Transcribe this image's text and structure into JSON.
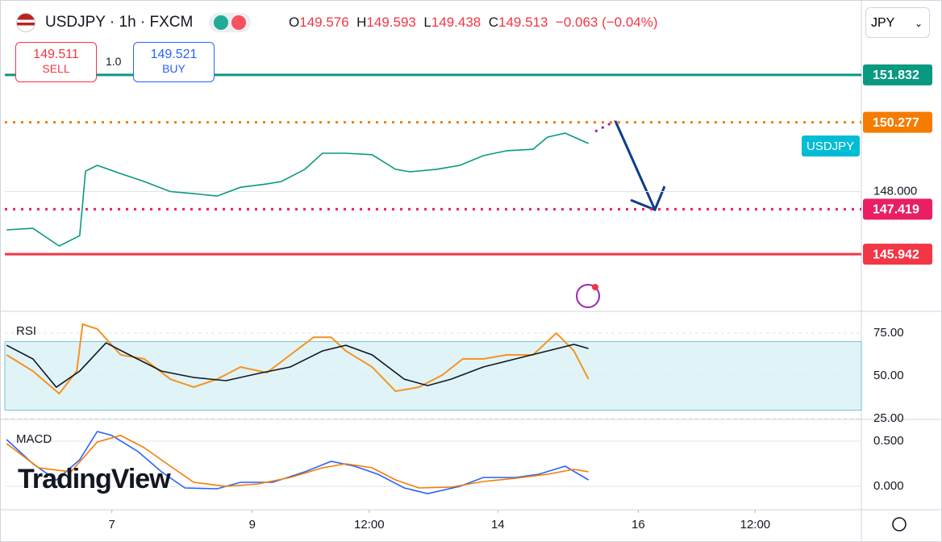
{
  "header": {
    "symbol": "USDJPY · 1h · FXCM",
    "ohlc": [
      {
        "key": "O",
        "value": "149.576"
      },
      {
        "key": "H",
        "value": "149.593"
      },
      {
        "key": "L",
        "value": "149.438"
      },
      {
        "key": "C",
        "value": "149.513"
      }
    ],
    "change": "−0.063 (−0.04%)"
  },
  "trade": {
    "sell_price": "149.511",
    "sell_label": "SELL",
    "spread": "1.0",
    "buy_price": "149.521",
    "buy_label": "BUY"
  },
  "currency": "JPY",
  "watermark": "TradingView",
  "chart_data": [
    {
      "type": "line",
      "title": "USDJPY",
      "xlim": [
        -36.6,
        256.3
      ],
      "ylim": [
        144.09,
        154.03
      ],
      "yticks": [
        {
          "value": 148,
          "label": "148.000"
        }
      ],
      "levels": [
        {
          "value": 151.832,
          "color": "#089981",
          "style": "solid"
        },
        {
          "value": 150.277,
          "color": "#f57c00",
          "style": "dotted"
        },
        {
          "value": 147.419,
          "color": "#e91e63",
          "style": "dotted"
        },
        {
          "value": 145.942,
          "color": "#f23645",
          "style": "solid"
        }
      ],
      "series": [
        {
          "color": "#089981",
          "x": [
            -36,
            -27,
            -18,
            -11,
            -9,
            -5,
            3,
            11,
            20,
            28,
            36,
            44,
            53,
            58,
            66,
            72,
            80,
            89,
            97,
            102,
            111,
            119,
            127,
            135,
            144,
            149,
            155,
            163
          ],
          "values": [
            146.74,
            146.79,
            146.21,
            146.55,
            148.67,
            148.86,
            148.59,
            148.33,
            148.0,
            147.93,
            147.85,
            148.14,
            148.25,
            148.33,
            148.73,
            149.26,
            149.26,
            149.21,
            148.73,
            148.65,
            148.73,
            148.86,
            149.18,
            149.34,
            149.39,
            149.79,
            149.92,
            149.58
          ]
        }
      ]
    },
    {
      "type": "line",
      "title": "RSI",
      "xlim": [
        -36.6,
        256.3
      ],
      "ylim": [
        25.5,
        86.8
      ],
      "band": [
        30,
        70
      ],
      "yticks": [
        {
          "value": 75,
          "label": "75.00"
        },
        {
          "value": 50,
          "label": "50.00"
        },
        {
          "value": 25,
          "label": "25.00"
        }
      ],
      "series": [
        {
          "color": "#f7931e",
          "x": [
            -36,
            -27,
            -18,
            -12,
            -10,
            -5,
            3,
            11,
            20,
            28,
            36,
            44,
            53,
            61,
            69,
            75,
            80,
            89,
            97,
            105,
            113,
            120,
            127,
            135,
            144,
            152,
            158,
            163
          ],
          "values": [
            62.3,
            52.8,
            39.6,
            52.8,
            80.2,
            77.4,
            62.3,
            59.9,
            48.1,
            43.4,
            48.1,
            55.2,
            51.9,
            62.3,
            72.6,
            72.6,
            64.6,
            55.2,
            41.0,
            43.4,
            50.5,
            59.9,
            59.9,
            62.3,
            62.3,
            75.0,
            64.6,
            48.1
          ]
        },
        {
          "color": "#131722",
          "x": [
            -36,
            -27,
            -19,
            -11,
            -2,
            6,
            17,
            28,
            39,
            50,
            61,
            72,
            80,
            89,
            100,
            108,
            116,
            127,
            138,
            149,
            158,
            163
          ],
          "values": [
            67.9,
            59.9,
            43.4,
            52.8,
            69.3,
            62.3,
            52.8,
            49.1,
            47.2,
            51.4,
            55.2,
            64.6,
            67.9,
            62.3,
            48.1,
            44.3,
            48.1,
            55.2,
            59.9,
            64.6,
            68.4,
            66.0
          ]
        }
      ]
    },
    {
      "type": "line",
      "title": "MACD",
      "xlim": [
        -36.6,
        256.3
      ],
      "ylim": [
        -0.241,
        0.723
      ],
      "yticks": [
        {
          "value": 0.5,
          "label": "0.500"
        },
        {
          "value": 0,
          "label": "0.000"
        }
      ],
      "xticks": [
        {
          "value": 0,
          "label": "7"
        },
        {
          "value": 48,
          "label": "9"
        },
        {
          "value": 88,
          "label": "12:00"
        },
        {
          "value": 132,
          "label": "14"
        },
        {
          "value": 180,
          "label": "16"
        },
        {
          "value": 220,
          "label": "12:00"
        }
      ],
      "series": [
        {
          "color": "#2962ff",
          "x": [
            -36,
            -27,
            -19,
            -11,
            -5,
            0,
            9,
            17,
            25,
            36,
            44,
            55,
            66,
            75,
            83,
            91,
            100,
            108,
            119,
            127,
            138,
            146,
            155,
            163
          ],
          "values": [
            0.518,
            0.25,
            0.07,
            0.295,
            0.607,
            0.563,
            0.384,
            0.161,
            -0.018,
            -0.027,
            0.045,
            0.045,
            0.161,
            0.277,
            0.223,
            0.134,
            -0.018,
            -0.08,
            0,
            0.098,
            0.098,
            0.134,
            0.223,
            0.071
          ]
        },
        {
          "color": "#f57c00",
          "x": [
            -36,
            -25,
            -14,
            -5,
            3,
            11,
            20,
            28,
            39,
            50,
            61,
            72,
            80,
            89,
            97,
            105,
            116,
            127,
            138,
            149,
            158,
            163
          ],
          "values": [
            0.473,
            0.205,
            0.161,
            0.491,
            0.563,
            0.429,
            0.223,
            0.045,
            0,
            0.027,
            0.098,
            0.205,
            0.25,
            0.205,
            0.071,
            -0.018,
            -0.009,
            0.054,
            0.089,
            0.134,
            0.188,
            0.161
          ]
        }
      ]
    }
  ]
}
